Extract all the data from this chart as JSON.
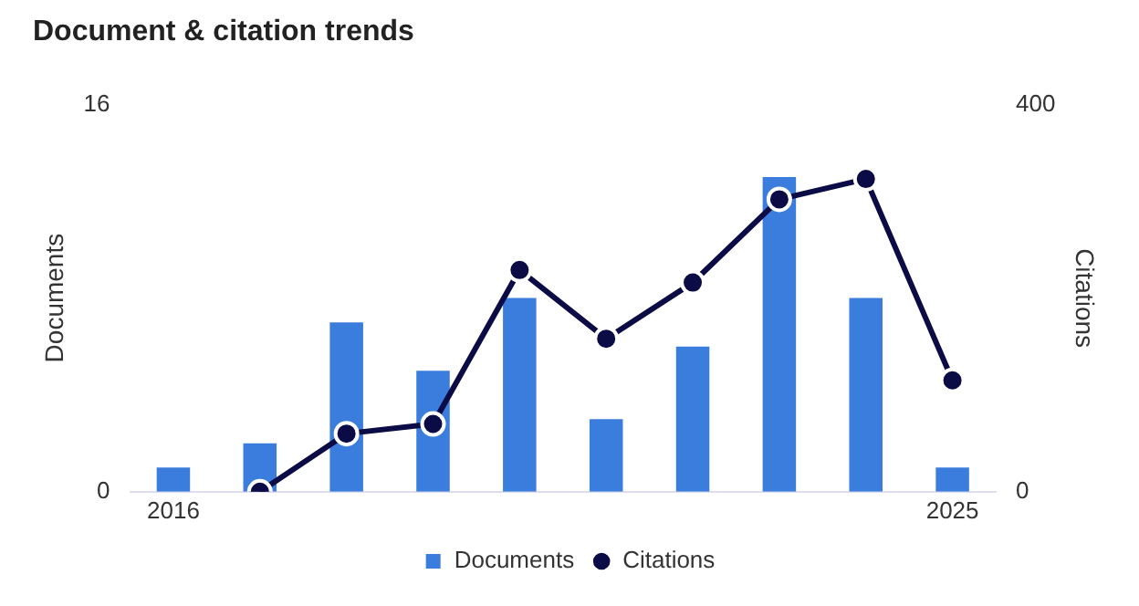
{
  "chart_data": {
    "type": "bar",
    "title": "Document & citation trends",
    "categories": [
      "2016",
      null,
      null,
      null,
      null,
      null,
      null,
      null,
      null,
      "2025"
    ],
    "series": [
      {
        "name": "Documents",
        "color": "#3b7ddd",
        "values": [
          1,
          2,
          7,
          5,
          8,
          3,
          6,
          13,
          8,
          1
        ]
      },
      {
        "name": "Citations",
        "type": "line",
        "axis": "y2",
        "color": "#0b0b45",
        "values": [
          null,
          0,
          60,
          70,
          229,
          158,
          216,
          302,
          323,
          115
        ]
      }
    ],
    "ylabel": "Documents",
    "y2label": "Citations",
    "ylim": [
      0,
      16
    ],
    "yticks": [
      0,
      16
    ],
    "y2lim": [
      0,
      400
    ],
    "y2ticks": [
      0,
      400
    ],
    "legend": "bottom",
    "grid": false,
    "marker": "circle",
    "line_style": "solid"
  }
}
